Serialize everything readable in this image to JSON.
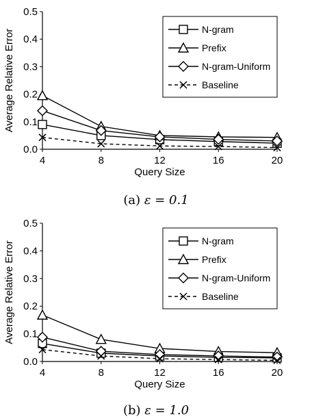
{
  "chart_data": [
    {
      "type": "line",
      "caption_prefix": "(a)",
      "caption_eq": "ε = 0.1",
      "xlabel": "Query Size",
      "ylabel": "Average Relative Error",
      "x": [
        4,
        8,
        12,
        16,
        20
      ],
      "xticks": [
        "4",
        "8",
        "12",
        "16",
        "20"
      ],
      "ylim": [
        0,
        0.5
      ],
      "yticks": [
        "0.0",
        "0.1",
        "0.2",
        "0.3",
        "0.4",
        "0.5"
      ],
      "grid": false,
      "legend_position": "top-right",
      "series": [
        {
          "name": "N-gram",
          "marker": "square",
          "dash": false,
          "values": [
            0.09,
            0.05,
            0.035,
            0.028,
            0.022
          ]
        },
        {
          "name": "Prefix",
          "marker": "triangle",
          "dash": false,
          "values": [
            0.195,
            0.083,
            0.05,
            0.045,
            0.043
          ]
        },
        {
          "name": "N-gram-Uniform",
          "marker": "diamond",
          "dash": false,
          "values": [
            0.14,
            0.068,
            0.045,
            0.036,
            0.03
          ]
        },
        {
          "name": "Baseline",
          "marker": "x",
          "dash": true,
          "values": [
            0.043,
            0.02,
            0.012,
            0.01,
            0.006
          ]
        }
      ]
    },
    {
      "type": "line",
      "caption_prefix": "(b)",
      "caption_eq": "ε = 1.0",
      "xlabel": "Query Size",
      "ylabel": "Average Relative Error",
      "x": [
        4,
        8,
        12,
        16,
        20
      ],
      "xticks": [
        "4",
        "8",
        "12",
        "16",
        "20"
      ],
      "ylim": [
        0,
        0.5
      ],
      "yticks": [
        "0.0",
        "0.1",
        "0.2",
        "0.3",
        "0.4",
        "0.5"
      ],
      "grid": false,
      "legend_position": "top-right",
      "series": [
        {
          "name": "N-gram",
          "marker": "square",
          "dash": false,
          "values": [
            0.065,
            0.03,
            0.02,
            0.015,
            0.013
          ]
        },
        {
          "name": "Prefix",
          "marker": "triangle",
          "dash": false,
          "values": [
            0.168,
            0.08,
            0.047,
            0.036,
            0.032
          ]
        },
        {
          "name": "N-gram-Uniform",
          "marker": "diamond",
          "dash": false,
          "values": [
            0.088,
            0.037,
            0.025,
            0.02,
            0.016
          ]
        },
        {
          "name": "Baseline",
          "marker": "x",
          "dash": true,
          "values": [
            0.043,
            0.02,
            0.01,
            0.007,
            0.004
          ]
        }
      ]
    }
  ]
}
